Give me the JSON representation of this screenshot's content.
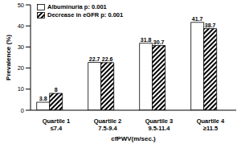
{
  "chart_data": {
    "type": "bar",
    "categories": [
      "Quartile 1\n≤7.4",
      "Quartile 2\n7.5-9.4",
      "Quartile 3\n9.5-11.4",
      "Quartile 4\n≥11.5"
    ],
    "series": [
      {
        "name": "Albuminuria p: 0.001",
        "color": "#ffffff",
        "values": [
          3.8,
          22.7,
          31.8,
          41.7
        ]
      },
      {
        "name": "Decrease in eGFR p: 0.001",
        "color": "#000000",
        "values": [
          8,
          22.6,
          30.7,
          38.7
        ]
      },
      {
        "color": "#ffffff",
        "values": [
          0,
          0,
          0,
          0
        ]
      }
    ],
    "x_label": "cfPWV(m/sec.)",
    "y_label": "Prevalence (%)",
    "ylim": [
      0,
      50
    ],
    "yticks": [
      0,
      10,
      20,
      30,
      40,
      50
    ],
    "grid": false,
    "legend": "upper left",
    "data_labels": true
  }
}
